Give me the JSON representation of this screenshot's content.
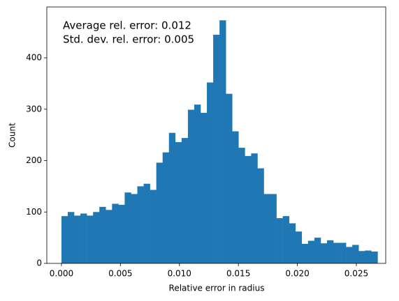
{
  "chart_data": {
    "type": "histogram",
    "xlabel": "Relative error in radius",
    "ylabel": "Count",
    "annotations": [
      "Average rel. error: 0.012",
      "Std. dev. rel. error: 0.005"
    ],
    "color": "#1f77b4",
    "bins": [
      0,
      0.000536,
      0.001072,
      0.001608,
      0.002144,
      0.00268,
      0.003216,
      0.003752,
      0.004288,
      0.004824,
      0.00536,
      0.005896,
      0.006432,
      0.006968,
      0.007504,
      0.00804,
      0.008576,
      0.009112,
      0.009648,
      0.010184,
      0.01072,
      0.011256,
      0.011792,
      0.012328,
      0.012864,
      0.0134,
      0.013936,
      0.014472,
      0.015008,
      0.015544,
      0.01608,
      0.016616,
      0.017152,
      0.017688,
      0.018224,
      0.01876,
      0.019296,
      0.019832,
      0.020368,
      0.020904,
      0.02144,
      0.021976,
      0.022512,
      0.023048,
      0.023584,
      0.02412,
      0.024656,
      0.025192,
      0.025728,
      0.026264,
      0.0268
    ],
    "values": [
      92,
      100,
      93,
      97,
      93,
      100,
      110,
      104,
      116,
      114,
      138,
      135,
      150,
      155,
      143,
      196,
      216,
      254,
      236,
      244,
      299,
      309,
      293,
      352,
      445,
      473,
      330,
      257,
      225,
      209,
      214,
      185,
      135,
      135,
      88,
      92,
      78,
      62,
      38,
      44,
      50,
      39,
      45,
      40,
      40,
      32,
      36,
      24,
      25,
      23
    ],
    "xlim": [
      -0.00124,
      0.02749
    ],
    "ylim": [
      0,
      499
    ],
    "xticks": [
      {
        "value": 0,
        "label": "0.000"
      },
      {
        "value": 0.005,
        "label": "0.005"
      },
      {
        "value": 0.01,
        "label": "0.010"
      },
      {
        "value": 0.015,
        "label": "0.015"
      },
      {
        "value": 0.02,
        "label": "0.020"
      },
      {
        "value": 0.025,
        "label": "0.025"
      }
    ],
    "yticks": [
      0,
      100,
      200,
      300,
      400
    ]
  }
}
